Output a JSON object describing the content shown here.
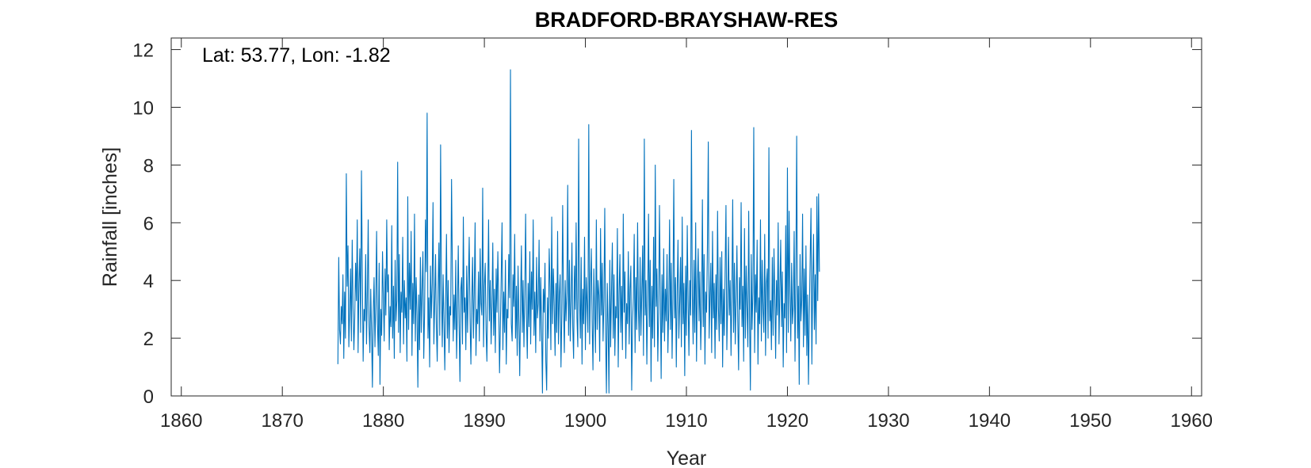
{
  "chart_data": {
    "type": "line",
    "title": "BRADFORD-BRAYSHAW-RES",
    "xlabel": "Year",
    "ylabel": "Rainfall [inches]",
    "annotation": "Lat: 53.77, Lon: -1.82",
    "xlim": [
      1859,
      1961
    ],
    "ylim": [
      0,
      12.4
    ],
    "xticks": [
      1860,
      1870,
      1880,
      1890,
      1900,
      1910,
      1920,
      1930,
      1940,
      1950,
      1960
    ],
    "yticks": [
      0,
      2,
      4,
      6,
      8,
      10,
      12
    ],
    "grid": false,
    "series_color": "#0072BD",
    "series": [
      {
        "x_start": 1875.5,
        "x_step": 0.0833333,
        "values": [
          1.1,
          4.8,
          2.3,
          1.8,
          3.1,
          2.5,
          4.2,
          1.3,
          3.6,
          2.0,
          7.7,
          3.8,
          5.2,
          1.7,
          2.9,
          4.4,
          1.9,
          5.4,
          3.1,
          1.6,
          2.7,
          4.6,
          3.3,
          6.1,
          1.5,
          3.9,
          5.1,
          2.2,
          7.8,
          4.3,
          1.2,
          3.0,
          2.6,
          4.9,
          1.8,
          3.5,
          6.1,
          2.4,
          1.5,
          3.7,
          2.2,
          0.3,
          2.9,
          4.1,
          1.7,
          3.2,
          5.7,
          2.5,
          1.4,
          4.6,
          0.4,
          3.0,
          2.1,
          5.0,
          3.4,
          1.9,
          4.4,
          2.8,
          6.1,
          3.6,
          4.2,
          1.6,
          3.1,
          2.4,
          5.9,
          2.0,
          3.8,
          1.3,
          4.7,
          2.6,
          3.3,
          8.1,
          2.2,
          4.9,
          1.5,
          3.6,
          2.9,
          5.5,
          1.8,
          4.0,
          2.7,
          3.4,
          1.2,
          6.9,
          2.3,
          4.6,
          3.0,
          5.7,
          1.4,
          3.9,
          2.5,
          6.3,
          1.9,
          4.1,
          2.8,
          0.3,
          3.5,
          1.6,
          4.8,
          2.2,
          3.7,
          5.0,
          1.3,
          2.9,
          6.1,
          4.3,
          9.8,
          2.0,
          3.4,
          1.0,
          4.5,
          2.7,
          3.9,
          6.7,
          1.8,
          3.2,
          4.9,
          2.4,
          1.2,
          3.6,
          5.3,
          2.1,
          8.7,
          3.8,
          1.7,
          4.2,
          2.6,
          0.9,
          3.3,
          5.6,
          2.0,
          4.0,
          1.5,
          3.1,
          2.8,
          7.5,
          4.4,
          1.9,
          3.5,
          2.3,
          4.7,
          1.3,
          3.0,
          5.2,
          2.5,
          0.5,
          3.7,
          4.1,
          1.8,
          6.2,
          2.9,
          3.4,
          1.6,
          4.5,
          2.2,
          3.9,
          5.5,
          2.7,
          1.1,
          3.3,
          4.8,
          2.0,
          3.6,
          6.0,
          1.4,
          3.0,
          2.5,
          4.3,
          1.9,
          5.1,
          3.2,
          2.8,
          7.2,
          1.7,
          3.8,
          4.6,
          2.3,
          1.2,
          3.5,
          6.1,
          2.6,
          4.0,
          1.8,
          3.1,
          5.3,
          2.1,
          3.7,
          1.5,
          4.4,
          2.9,
          5.0,
          3.3,
          0.8,
          2.4,
          4.1,
          6.0,
          1.6,
          3.6,
          2.2,
          4.7,
          1.1,
          3.0,
          2.7,
          4.9,
          3.4,
          11.3,
          2.5,
          1.9,
          4.2,
          3.1,
          5.6,
          2.0,
          3.8,
          1.4,
          4.5,
          2.6,
          0.7,
          3.3,
          5.2,
          2.2,
          4.0,
          1.7,
          3.5,
          6.3,
          2.8,
          1.3,
          3.9,
          2.4,
          5.0,
          1.8,
          4.3,
          3.0,
          6.1,
          2.1,
          3.6,
          1.5,
          4.8,
          2.7,
          3.2,
          5.4,
          1.9,
          4.1,
          2.3,
          0.1,
          3.7,
          2.9,
          4.6,
          1.2,
          0.2,
          3.4,
          2.0,
          5.1,
          3.8,
          1.6,
          6.2,
          2.5,
          4.4,
          3.1,
          1.4,
          3.9,
          2.2,
          5.7,
          1.8,
          3.5,
          4.2,
          1.0,
          2.8,
          6.6,
          3.3,
          1.5,
          4.0,
          2.6,
          3.6,
          7.3,
          2.1,
          4.7,
          1.9,
          3.2,
          5.3,
          2.4,
          1.3,
          4.5,
          3.0,
          6.0,
          2.7,
          1.7,
          8.9,
          3.4,
          2.0,
          4.8,
          1.1,
          3.7,
          2.5,
          5.5,
          1.6,
          4.1,
          3.2,
          2.2,
          9.4,
          1.8,
          3.8,
          5.1,
          2.6,
          0.9,
          4.4,
          3.0,
          1.5,
          6.1,
          2.3,
          4.0,
          3.5,
          1.2,
          5.8,
          2.8,
          4.6,
          1.9,
          3.3,
          6.5,
          2.1,
          0.1,
          3.9,
          2.4,
          0.1,
          4.7,
          1.7,
          3.6,
          5.3,
          2.0,
          4.2,
          1.4,
          3.1,
          2.7,
          5.8,
          1.0,
          3.5,
          4.9,
          2.2,
          3.8,
          1.6,
          6.3,
          2.9,
          4.3,
          1.3,
          3.2,
          2.5,
          5.0,
          1.8,
          3.7,
          4.5,
          0.2,
          2.6,
          3.4,
          5.6,
          1.5,
          4.1,
          2.3,
          6.0,
          3.0,
          1.9,
          4.8,
          2.1,
          3.6,
          5.2,
          1.4,
          8.9,
          2.8,
          4.0,
          1.1,
          3.3,
          6.3,
          2.4,
          4.7,
          0.5,
          3.8,
          2.0,
          5.5,
          1.7,
          8.0,
          3.1,
          4.4,
          1.2,
          2.9,
          6.6,
          3.5,
          0.6,
          4.2,
          2.2,
          5.1,
          1.9,
          3.7,
          2.6,
          4.9,
          1.5,
          3.0,
          6.1,
          2.3,
          4.6,
          1.3,
          3.4,
          7.5,
          2.7,
          4.1,
          1.0,
          3.6,
          5.4,
          2.0,
          3.2,
          4.8,
          1.7,
          6.2,
          2.5,
          3.9,
          0.7,
          4.5,
          2.1,
          5.9,
          3.3,
          1.4,
          4.0,
          2.8,
          9.2,
          3.5,
          1.8,
          4.7,
          2.2,
          6.0,
          1.2,
          3.8,
          5.1,
          2.6,
          4.3,
          1.6,
          3.0,
          6.8,
          2.4,
          4.9,
          1.1,
          3.6,
          2.9,
          5.3,
          8.8,
          2.0,
          3.4,
          4.6,
          1.5,
          5.7,
          2.7,
          3.9,
          1.3,
          4.2,
          2.3,
          6.4,
          3.1,
          1.9,
          4.8,
          2.5,
          5.0,
          1.0,
          3.7,
          2.1,
          4.4,
          6.6,
          1.6,
          3.2,
          5.5,
          2.8,
          4.0,
          1.4,
          3.5,
          6.8,
          2.2,
          4.6,
          1.8,
          3.3,
          5.2,
          2.6,
          0.9,
          4.1,
          3.0,
          6.7,
          2.4,
          3.8,
          1.2,
          5.8,
          2.0,
          4.5,
          3.1,
          1.7,
          6.4,
          2.7,
          0.2,
          4.9,
          2.3,
          3.6,
          9.3,
          1.5,
          4.2,
          2.9,
          5.4,
          1.1,
          3.4,
          2.5,
          6.1,
          1.9,
          4.7,
          3.0,
          2.2,
          5.6,
          1.4,
          3.9,
          4.4,
          2.0,
          8.6,
          2.6,
          3.3,
          1.6,
          4.8,
          2.1,
          5.1,
          3.5,
          1.3,
          4.0,
          2.8,
          6.0,
          1.8,
          3.7,
          5.4,
          2.4,
          4.3,
          1.0,
          3.2,
          2.7,
          5.9,
          1.5,
          7.9,
          2.2,
          6.4,
          3.6,
          1.9,
          4.6,
          2.5,
          3.1,
          5.7,
          1.2,
          4.1,
          9.0,
          2.0,
          3.8,
          0.4,
          4.9,
          2.6,
          3.3,
          6.3,
          1.7,
          4.4,
          2.1,
          5.2,
          1.4,
          3.5,
          0.4,
          2.8,
          4.7,
          6.5,
          1.1,
          3.9,
          5.6,
          2.3,
          4.2,
          1.8,
          6.9,
          3.3,
          7.0,
          4.3
        ]
      }
    ]
  }
}
